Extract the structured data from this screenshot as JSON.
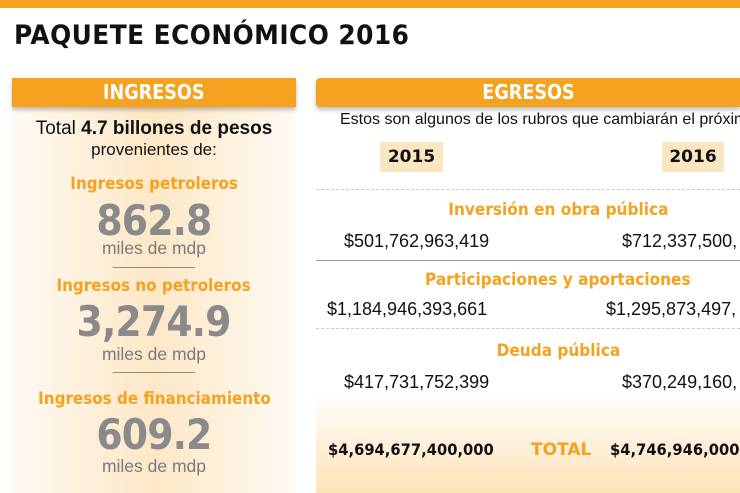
{
  "title": "PAQUETE ECONÓMICO 2016",
  "colors": {
    "accent": "#f4a21f",
    "panel": "#fde7c6",
    "number_gray": "#8a8a8a"
  },
  "ingresos": {
    "header": "INGRESOS",
    "total_prefix": "Total",
    "total_value": "4.7 billones de pesos",
    "subtitle": "provenientes de:",
    "items": [
      {
        "label": "Ingresos petroleros",
        "value": "862.8",
        "unit": "miles de mdp"
      },
      {
        "label": "Ingresos no petroleros",
        "value": "3,274.9",
        "unit": "miles de mdp"
      },
      {
        "label": "Ingresos de financiamiento",
        "value": "609.2",
        "unit": "miles de mdp"
      }
    ]
  },
  "egresos": {
    "header": "EGRESOS",
    "intro": "Estos son algunos de los rubros que cambiarán el próximo",
    "years": [
      "2015",
      "2016"
    ],
    "rows": [
      {
        "label": "Inversión en obra pública",
        "v2015": "$501,762,963,419",
        "v2016": "$712,337,500,"
      },
      {
        "label": "Participaciones y aportaciones",
        "v2015": "$1,184,946,393,661",
        "v2016": "$1,295,873,497,"
      },
      {
        "label": "Deuda pública",
        "v2015": "$417,731,752,399",
        "v2016": "$370,249,160,"
      }
    ],
    "total": {
      "label": "TOTAL",
      "v2015": "$4,694,677,400,000",
      "v2016": "$4,746,946,000"
    }
  }
}
